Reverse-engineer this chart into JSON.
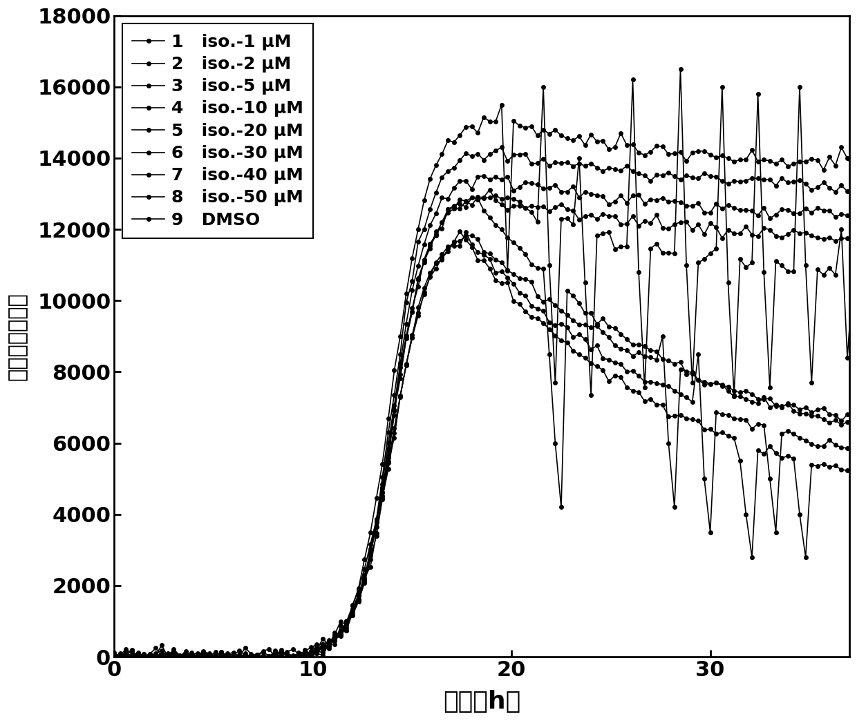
{
  "xlabel": "时间（h）",
  "ylabel": "标准化荧光强度",
  "xlim": [
    0,
    37
  ],
  "ylim": [
    0,
    18000
  ],
  "xticks": [
    0,
    10,
    20,
    30
  ],
  "yticks": [
    0,
    2000,
    4000,
    6000,
    8000,
    10000,
    12000,
    14000,
    16000,
    18000
  ],
  "legend_nums": [
    "1",
    "2",
    "3",
    "4",
    "5",
    "6",
    "7",
    "8",
    "9"
  ],
  "legend_texts": [
    "iso.-1 μM",
    "iso.-2 μM",
    "iso.-5 μM",
    "iso.-10 μM",
    "iso.-20 μM",
    "iso.-30 μM",
    "iso.-40 μM",
    "iso.-50 μM",
    "DMSO"
  ],
  "line_color": "#000000",
  "background": "#ffffff",
  "marker": "o",
  "marker_size": 4,
  "line_width": 1.2,
  "rise_mid": 14.0,
  "rise_k": 1.2
}
